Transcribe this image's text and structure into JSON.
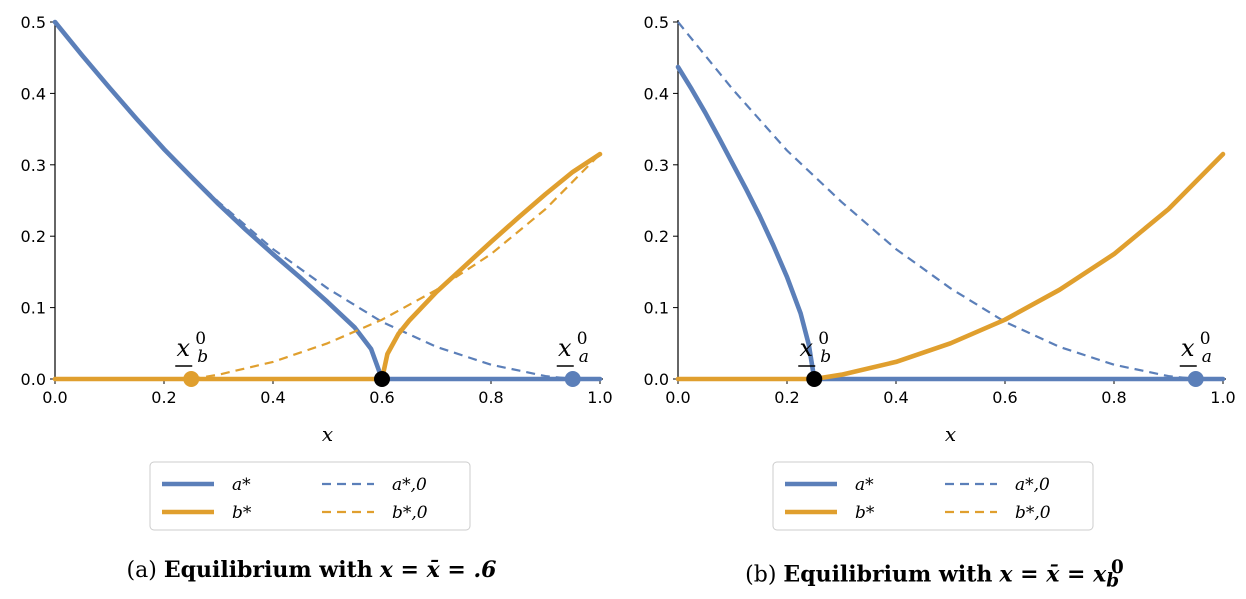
{
  "colors": {
    "a": "#5b7fb9",
    "b": "#e09f2e",
    "marker": "#000000"
  },
  "chart_data": [
    {
      "type": "line",
      "panel": "a",
      "caption": {
        "tag": "(a)",
        "title": "Equilibrium with",
        "math": "x = x̄ = .6"
      },
      "xlabel": "x",
      "ylabel": "",
      "xlim": [
        0,
        1
      ],
      "ylim": [
        0,
        0.5
      ],
      "xticks": [
        "0.0",
        "0.2",
        "0.4",
        "0.6",
        "0.8",
        "1.0"
      ],
      "yticks": [
        "0.0",
        "0.1",
        "0.2",
        "0.3",
        "0.4",
        "0.5"
      ],
      "grid": false,
      "legend": {
        "placement": "bottom",
        "entries": [
          "a*",
          "a*,0",
          "b*",
          "b*,0"
        ]
      },
      "series": [
        {
          "name": "a*",
          "style": "solid",
          "color": "a",
          "x": [
            0,
            0.05,
            0.1,
            0.15,
            0.2,
            0.25,
            0.3,
            0.35,
            0.4,
            0.45,
            0.5,
            0.55,
            0.58,
            0.6,
            1.0
          ],
          "y": [
            0.5,
            0.453,
            0.408,
            0.364,
            0.322,
            0.283,
            0.245,
            0.209,
            0.175,
            0.142,
            0.108,
            0.072,
            0.042,
            0.0,
            0.0
          ]
        },
        {
          "name": "a*,0",
          "style": "dashed",
          "color": "a",
          "x": [
            0,
            0.1,
            0.2,
            0.3,
            0.4,
            0.5,
            0.6,
            0.7,
            0.8,
            0.9,
            0.95
          ],
          "y": [
            0.5,
            0.406,
            0.32,
            0.248,
            0.182,
            0.127,
            0.08,
            0.045,
            0.02,
            0.004,
            0.0
          ]
        },
        {
          "name": "b*",
          "style": "solid",
          "color": "b",
          "x": [
            0,
            0.6,
            0.61,
            0.63,
            0.65,
            0.7,
            0.75,
            0.8,
            0.85,
            0.9,
            0.95,
            1.0
          ],
          "y": [
            0.0,
            0.0,
            0.035,
            0.063,
            0.082,
            0.122,
            0.157,
            0.192,
            0.226,
            0.259,
            0.29,
            0.315
          ]
        },
        {
          "name": "b*,0",
          "style": "dashed",
          "color": "b",
          "x": [
            0.25,
            0.3,
            0.4,
            0.5,
            0.6,
            0.7,
            0.8,
            0.9,
            1.0
          ],
          "y": [
            0.0,
            0.006,
            0.024,
            0.05,
            0.083,
            0.125,
            0.175,
            0.238,
            0.315
          ]
        }
      ],
      "points": [
        {
          "label_base": "x",
          "label_sub": "b",
          "label_sup": "0",
          "x": 0.25,
          "y": 0,
          "color": "b"
        },
        {
          "label_base": "x",
          "label_sub": "a",
          "label_sup": "0",
          "x": 0.95,
          "y": 0,
          "color": "a"
        },
        {
          "x": 0.6,
          "y": 0,
          "color": "marker"
        }
      ]
    },
    {
      "type": "line",
      "panel": "b",
      "caption": {
        "tag": "(b)",
        "title": "Equilibrium with",
        "math": "x = x̄ = x",
        "math_sub": "b",
        "math_sup": "0"
      },
      "xlabel": "x",
      "ylabel": "",
      "xlim": [
        0,
        1
      ],
      "ylim": [
        0,
        0.5
      ],
      "xticks": [
        "0.0",
        "0.2",
        "0.4",
        "0.6",
        "0.8",
        "1.0"
      ],
      "yticks": [
        "0.0",
        "0.1",
        "0.2",
        "0.3",
        "0.4",
        "0.5"
      ],
      "grid": false,
      "legend": {
        "placement": "bottom",
        "entries": [
          "a*",
          "a*,0",
          "b*",
          "b*,0"
        ]
      },
      "series": [
        {
          "name": "a*",
          "style": "solid",
          "color": "a",
          "x": [
            0,
            0.025,
            0.05,
            0.075,
            0.1,
            0.125,
            0.15,
            0.175,
            0.2,
            0.225,
            0.24,
            0.25,
            1.0
          ],
          "y": [
            0.437,
            0.406,
            0.373,
            0.338,
            0.302,
            0.266,
            0.228,
            0.187,
            0.143,
            0.092,
            0.048,
            0.0,
            0.0
          ]
        },
        {
          "name": "a*,0",
          "style": "dashed",
          "color": "a",
          "x": [
            0,
            0.1,
            0.2,
            0.3,
            0.4,
            0.5,
            0.6,
            0.7,
            0.8,
            0.9,
            0.95
          ],
          "y": [
            0.5,
            0.406,
            0.32,
            0.248,
            0.182,
            0.127,
            0.08,
            0.045,
            0.02,
            0.004,
            0.0
          ]
        },
        {
          "name": "b*",
          "style": "solid",
          "color": "b",
          "x": [
            0,
            0.25,
            0.3,
            0.4,
            0.5,
            0.6,
            0.7,
            0.8,
            0.9,
            1.0
          ],
          "y": [
            0.0,
            0.0,
            0.006,
            0.024,
            0.05,
            0.083,
            0.125,
            0.175,
            0.238,
            0.315
          ]
        }
      ],
      "points": [
        {
          "label_base": "x",
          "label_sub": "b",
          "label_sup": "0",
          "x": 0.25,
          "y": 0,
          "color": "marker"
        },
        {
          "label_base": "x",
          "label_sub": "a",
          "label_sup": "0",
          "x": 0.95,
          "y": 0,
          "color": "a"
        }
      ]
    }
  ]
}
